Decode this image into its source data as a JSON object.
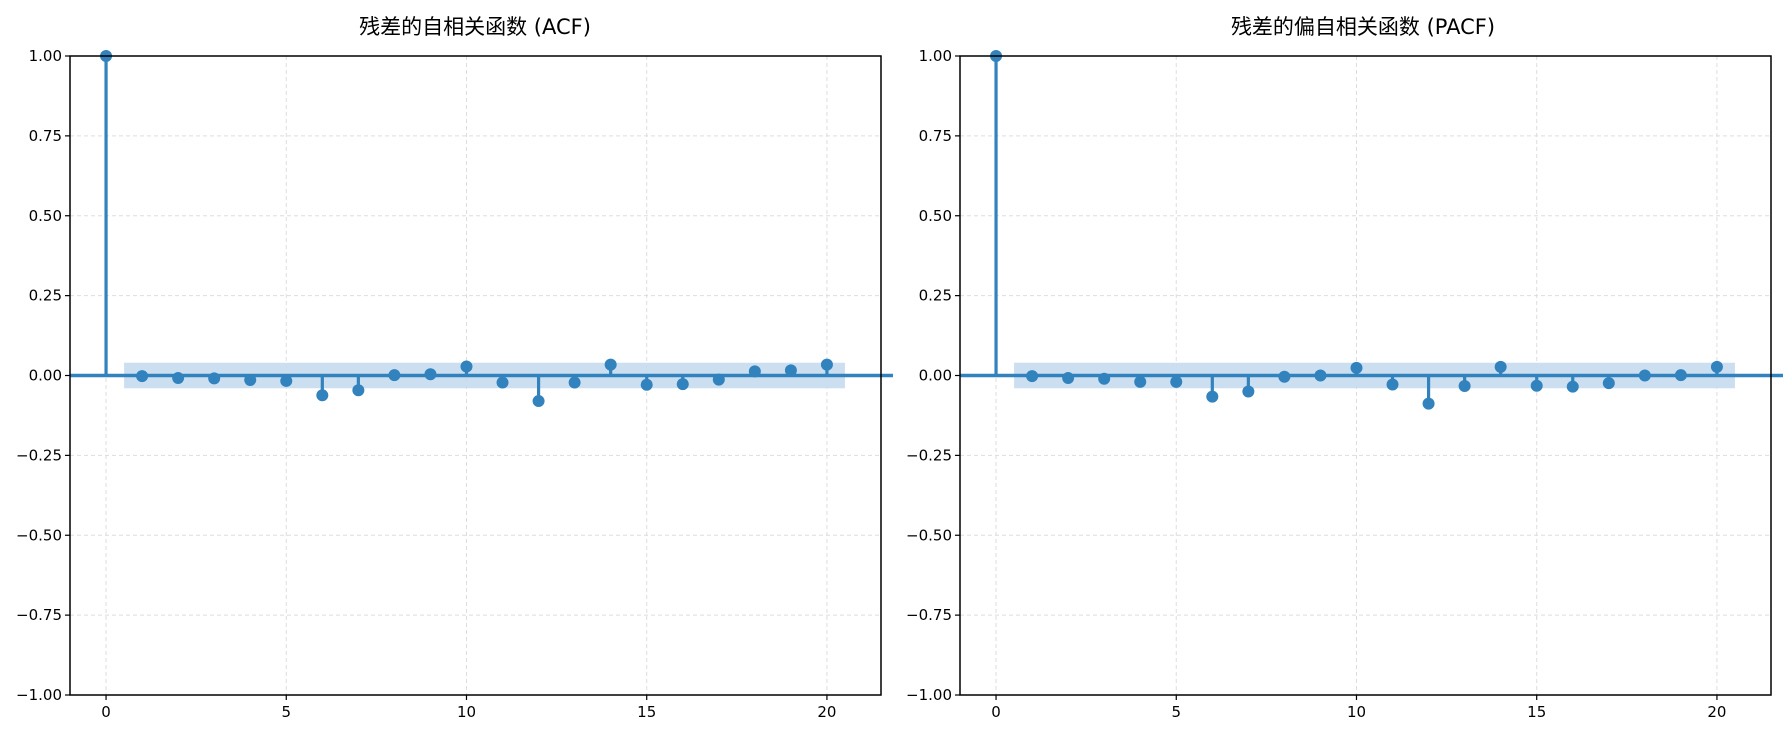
{
  "chart_data": [
    {
      "type": "stem",
      "title": "残差的自相关函数 (ACF)",
      "xlabel": "",
      "ylabel": "",
      "xlim": [
        -1,
        21.5
      ],
      "ylim": [
        -1.0,
        1.0
      ],
      "xticks": [
        0,
        5,
        10,
        15,
        20
      ],
      "yticks": [
        1.0,
        0.75,
        0.5,
        0.25,
        0.0,
        -0.25,
        -0.5,
        -0.75,
        -1.0
      ],
      "ytick_labels": [
        "1.00",
        "0.75",
        "0.50",
        "0.25",
        "0.00",
        "−0.25",
        "−0.50",
        "−0.75",
        "−1.00"
      ],
      "grid": true,
      "confidence_band": {
        "x_range": [
          0.5,
          20.5
        ],
        "y_range": [
          -0.04,
          0.04
        ]
      },
      "lags": [
        0,
        1,
        2,
        3,
        4,
        5,
        6,
        7,
        8,
        9,
        10,
        11,
        12,
        13,
        14,
        15,
        16,
        17,
        18,
        19,
        20
      ],
      "values": [
        1.0,
        -0.002,
        -0.008,
        -0.009,
        -0.014,
        -0.017,
        -0.062,
        -0.046,
        0.001,
        0.004,
        0.028,
        -0.022,
        -0.08,
        -0.022,
        0.034,
        -0.029,
        -0.027,
        -0.013,
        0.013,
        0.016,
        0.034
      ]
    },
    {
      "type": "stem",
      "title": "残差的偏自相关函数 (PACF)",
      "xlabel": "",
      "ylabel": "",
      "xlim": [
        -1,
        21.5
      ],
      "ylim": [
        -1.0,
        1.0
      ],
      "xticks": [
        0,
        5,
        10,
        15,
        20
      ],
      "yticks": [
        1.0,
        0.75,
        0.5,
        0.25,
        0.0,
        -0.25,
        -0.5,
        -0.75,
        -1.0
      ],
      "ytick_labels": [
        "1.00",
        "0.75",
        "0.50",
        "0.25",
        "0.00",
        "−0.25",
        "−0.50",
        "−0.75",
        "−1.00"
      ],
      "grid": true,
      "confidence_band": {
        "x_range": [
          0.5,
          20.5
        ],
        "y_range": [
          -0.04,
          0.04
        ]
      },
      "lags": [
        0,
        1,
        2,
        3,
        4,
        5,
        6,
        7,
        8,
        9,
        10,
        11,
        12,
        13,
        14,
        15,
        16,
        17,
        18,
        19,
        20
      ],
      "values": [
        1.0,
        -0.002,
        -0.008,
        -0.01,
        -0.02,
        -0.02,
        -0.066,
        -0.05,
        -0.004,
        0.0,
        0.024,
        -0.028,
        -0.088,
        -0.033,
        0.027,
        -0.032,
        -0.035,
        -0.024,
        0.0,
        0.001,
        0.027
      ]
    }
  ],
  "colors": {
    "stem": "#3182bd",
    "band": "#c6dbef",
    "grid": "#dddddd",
    "axis": "#000000"
  }
}
